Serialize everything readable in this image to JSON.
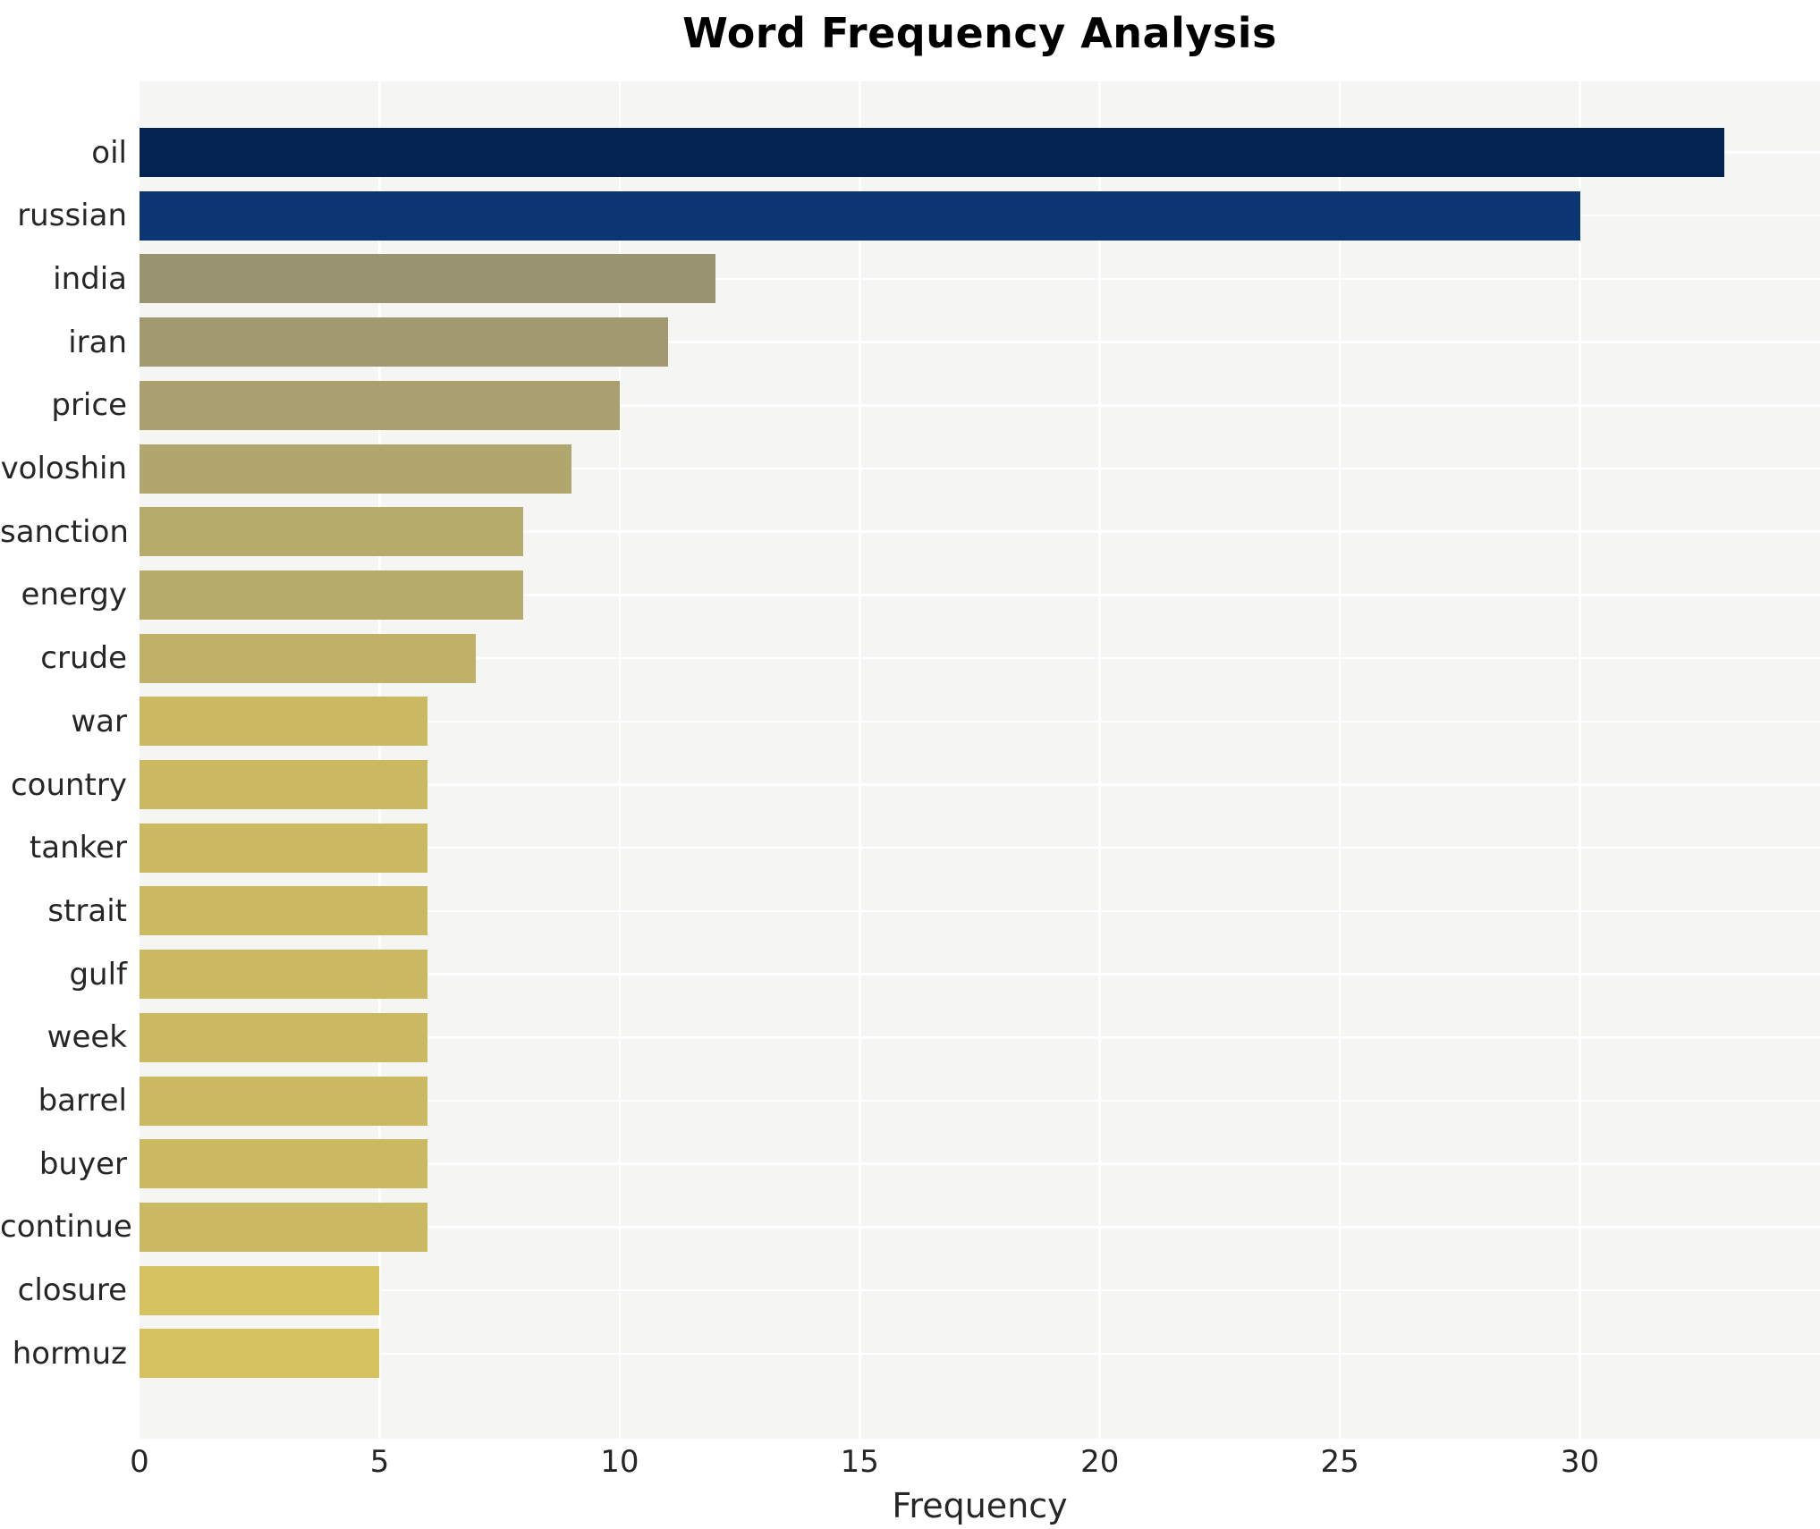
{
  "chart_data": {
    "type": "bar",
    "orientation": "horizontal",
    "title": "Word Frequency Analysis",
    "xlabel": "Frequency",
    "ylabel": "",
    "categories": [
      "oil",
      "russian",
      "india",
      "iran",
      "price",
      "voloshin",
      "sanction",
      "energy",
      "crude",
      "war",
      "country",
      "tanker",
      "strait",
      "gulf",
      "week",
      "barrel",
      "buyer",
      "continue",
      "closure",
      "hormuz"
    ],
    "values": [
      33,
      30,
      12,
      11,
      10,
      9,
      8,
      8,
      7,
      6,
      6,
      6,
      6,
      6,
      6,
      6,
      6,
      6,
      5,
      5
    ],
    "bar_colors": [
      "#032350",
      "#0b3573",
      "#9a9372",
      "#a29970",
      "#aaa06f",
      "#b0a66e",
      "#b7ab6b",
      "#b7ab6b",
      "#bfb167",
      "#cbb962",
      "#cbb962",
      "#cbb962",
      "#cbb962",
      "#cbb962",
      "#cbb962",
      "#cbb962",
      "#cbb962",
      "#cbb962",
      "#d5c15d",
      "#d5c15d"
    ],
    "xlim": [
      0,
      35
    ],
    "xticks": [
      0,
      5,
      10,
      15,
      20,
      25,
      30
    ],
    "grid": true,
    "legend": "none",
    "colors": {
      "figure_bg": "#ffffff",
      "plot_bg": "#f5f5f4",
      "grid": "#ffffff",
      "text": "#262626",
      "title_text": "#000000"
    }
  }
}
